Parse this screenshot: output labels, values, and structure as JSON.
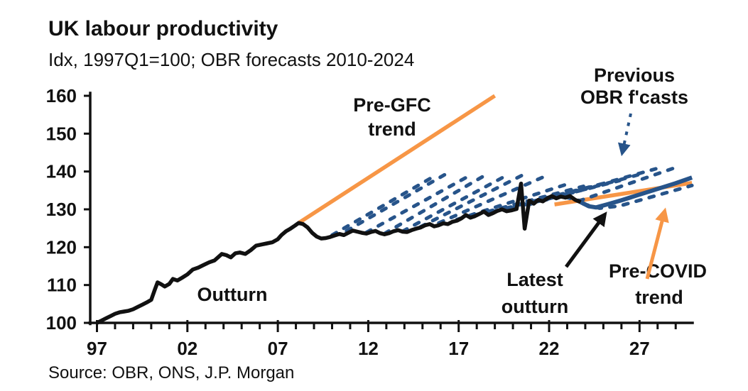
{
  "title": "UK labour productivity",
  "subtitle": "Idx, 1997Q1=100; OBR forecasts 2010-2024",
  "source": "Source: OBR, ONS, J.P. Morgan",
  "colors": {
    "ink": "#111111",
    "orange": "#F79646",
    "blue": "#27548A"
  },
  "annotations": {
    "outturn": {
      "lines": [
        "Outturn"
      ]
    },
    "pre_gfc": {
      "lines": [
        "Pre-GFC",
        "trend"
      ]
    },
    "previous_obr": {
      "lines": [
        "Previous",
        "OBR f'casts"
      ]
    },
    "latest_outturn": {
      "lines": [
        "Latest",
        "outturn"
      ]
    },
    "pre_covid": {
      "lines": [
        "Pre-COVID",
        "trend"
      ]
    }
  },
  "chart_data": {
    "type": "line",
    "title": "UK labour productivity",
    "subtitle": "Idx, 1997Q1=100; OBR forecasts 2010-2024",
    "xlabel": "",
    "ylabel": "",
    "grid": false,
    "legend_position": "annotations-in-plot",
    "x_range": [
      1997,
      2030
    ],
    "ylim": [
      100,
      160
    ],
    "y_ticks": [
      100,
      110,
      120,
      130,
      140,
      150,
      160
    ],
    "x_major_ticks": [
      1997,
      2002,
      2007,
      2012,
      2017,
      2022,
      2027
    ],
    "x_tick_labels": [
      "97",
      "02",
      "07",
      "12",
      "17",
      "22",
      "27"
    ],
    "x_minor_tick_step": 1,
    "series": [
      {
        "id": "pre_covid_trend",
        "name": "Pre-COVID trend",
        "color": "orange",
        "style": "solid",
        "width": 5.5,
        "points": [
          [
            2022.3,
            131.3
          ],
          [
            2029.9,
            137.0
          ]
        ]
      },
      {
        "id": "obr_forecasts",
        "name": "Previous OBR f'casts",
        "color": "blue",
        "style": "dashed",
        "width": 5,
        "vintages": [
          [
            [
              2010.0,
              123.2
            ],
            [
              2015.7,
              138.9
            ]
          ],
          [
            [
              2010.8,
              124.3
            ],
            [
              2016.5,
              139.9
            ]
          ],
          [
            [
              2011.9,
              123.9
            ],
            [
              2017.6,
              138.9
            ]
          ],
          [
            [
              2012.9,
              123.6
            ],
            [
              2018.6,
              139.4
            ]
          ],
          [
            [
              2013.9,
              124.2
            ],
            [
              2019.7,
              139.1
            ]
          ],
          [
            [
              2014.9,
              125.4
            ],
            [
              2020.8,
              139.7
            ]
          ],
          [
            [
              2015.9,
              126.4
            ],
            [
              2021.8,
              138.8
            ]
          ],
          [
            [
              2016.9,
              127.3
            ],
            [
              2022.9,
              136.5
            ]
          ],
          [
            [
              2017.9,
              128.5
            ],
            [
              2023.9,
              136.1
            ]
          ],
          [
            [
              2018.9,
              129.4
            ],
            [
              2021.0,
              132.0
            ],
            [
              2024.9,
              136.7
            ]
          ],
          [
            [
              2019.9,
              130.3
            ],
            [
              2025.9,
              137.6
            ]
          ],
          [
            [
              2020.9,
              131.3
            ],
            [
              2026.9,
              139.1
            ]
          ],
          [
            [
              2021.9,
              132.7
            ],
            [
              2027.9,
              140.7
            ]
          ],
          [
            [
              2022.9,
              133.2
            ],
            [
              2023.7,
              132.3
            ],
            [
              2028.9,
              140.9
            ]
          ],
          [
            [
              2023.9,
              131.4
            ],
            [
              2024.8,
              130.3
            ],
            [
              2025.9,
              130.9
            ],
            [
              2029.9,
              136.3
            ]
          ]
        ]
      },
      {
        "id": "pre_gfc_trend",
        "name": "Pre-GFC trend",
        "color": "orange",
        "style": "solid",
        "width": 5.5,
        "points": [
          [
            2008.15,
            126.4
          ],
          [
            2019.0,
            160.0
          ]
        ]
      },
      {
        "id": "outturn",
        "name": "Outturn",
        "color": "ink",
        "style": "solid",
        "width": 5.5,
        "points": [
          [
            1997.0,
            100
          ],
          [
            1997.25,
            100.6
          ],
          [
            1997.5,
            101.2
          ],
          [
            1997.75,
            101.8
          ],
          [
            1998.0,
            102.4
          ],
          [
            1998.25,
            102.8
          ],
          [
            1998.5,
            103.0
          ],
          [
            1998.75,
            103.2
          ],
          [
            1999.0,
            103.6
          ],
          [
            1999.25,
            104.2
          ],
          [
            1999.5,
            104.8
          ],
          [
            1999.75,
            105.4
          ],
          [
            2000.0,
            106.1
          ],
          [
            2000.2,
            108.8
          ],
          [
            2000.35,
            110.7
          ],
          [
            2000.55,
            110.2
          ],
          [
            2000.75,
            109.6
          ],
          [
            2001.0,
            110.3
          ],
          [
            2001.2,
            111.6
          ],
          [
            2001.45,
            111.2
          ],
          [
            2001.7,
            111.9
          ],
          [
            2002.0,
            112.8
          ],
          [
            2002.3,
            114.1
          ],
          [
            2002.6,
            114.6
          ],
          [
            2002.9,
            115.3
          ],
          [
            2003.2,
            116.0
          ],
          [
            2003.5,
            116.5
          ],
          [
            2003.9,
            118.2
          ],
          [
            2004.15,
            117.9
          ],
          [
            2004.4,
            117.3
          ],
          [
            2004.65,
            118.4
          ],
          [
            2004.9,
            118.6
          ],
          [
            2005.2,
            118.2
          ],
          [
            2005.5,
            119.2
          ],
          [
            2005.8,
            120.4
          ],
          [
            2006.1,
            120.7
          ],
          [
            2006.4,
            121.0
          ],
          [
            2006.7,
            121.3
          ],
          [
            2007.0,
            122.1
          ],
          [
            2007.2,
            123.2
          ],
          [
            2007.45,
            124.2
          ],
          [
            2007.7,
            124.9
          ],
          [
            2007.95,
            125.7
          ],
          [
            2008.15,
            126.4
          ],
          [
            2008.4,
            126.1
          ],
          [
            2008.65,
            125.2
          ],
          [
            2008.9,
            123.8
          ],
          [
            2009.15,
            122.8
          ],
          [
            2009.4,
            122.3
          ],
          [
            2009.65,
            122.4
          ],
          [
            2009.9,
            122.7
          ],
          [
            2010.15,
            123.1
          ],
          [
            2010.4,
            123.5
          ],
          [
            2010.65,
            123.2
          ],
          [
            2010.9,
            123.8
          ],
          [
            2011.15,
            124.4
          ],
          [
            2011.4,
            124.1
          ],
          [
            2011.65,
            123.8
          ],
          [
            2011.9,
            123.6
          ],
          [
            2012.15,
            124.0
          ],
          [
            2012.4,
            124.3
          ],
          [
            2012.65,
            123.7
          ],
          [
            2012.9,
            123.4
          ],
          [
            2013.15,
            123.7
          ],
          [
            2013.4,
            124.2
          ],
          [
            2013.65,
            124.5
          ],
          [
            2013.9,
            124.1
          ],
          [
            2014.15,
            124.0
          ],
          [
            2014.4,
            124.5
          ],
          [
            2014.65,
            124.9
          ],
          [
            2014.9,
            125.2
          ],
          [
            2015.15,
            125.8
          ],
          [
            2015.4,
            126.1
          ],
          [
            2015.65,
            125.5
          ],
          [
            2015.9,
            125.8
          ],
          [
            2016.15,
            126.3
          ],
          [
            2016.4,
            126.1
          ],
          [
            2016.65,
            126.7
          ],
          [
            2016.9,
            127.0
          ],
          [
            2017.15,
            127.6
          ],
          [
            2017.4,
            128.5
          ],
          [
            2017.65,
            127.8
          ],
          [
            2017.9,
            128.2
          ],
          [
            2018.15,
            128.8
          ],
          [
            2018.4,
            129.4
          ],
          [
            2018.65,
            128.5
          ],
          [
            2018.9,
            129.0
          ],
          [
            2019.15,
            129.6
          ],
          [
            2019.4,
            130.0
          ],
          [
            2019.65,
            129.5
          ],
          [
            2019.9,
            129.7
          ],
          [
            2020.2,
            130.1
          ],
          [
            2020.45,
            136.8
          ],
          [
            2020.65,
            124.9
          ],
          [
            2020.9,
            132.3
          ],
          [
            2021.15,
            131.5
          ],
          [
            2021.4,
            132.5
          ],
          [
            2021.65,
            132.1
          ],
          [
            2021.9,
            132.9
          ],
          [
            2022.15,
            133.5
          ],
          [
            2022.4,
            132.9
          ],
          [
            2022.65,
            133.4
          ],
          [
            2022.9,
            133.1
          ],
          [
            2023.15,
            133.5
          ],
          [
            2023.45,
            132.5
          ],
          [
            2023.75,
            131.9
          ]
        ]
      },
      {
        "id": "latest_forecast",
        "name": "",
        "color": "blue",
        "style": "solid",
        "width": 6,
        "points": [
          [
            2023.75,
            131.9
          ],
          [
            2024.2,
            130.8
          ],
          [
            2024.6,
            130.5
          ],
          [
            2025.2,
            131.3
          ],
          [
            2026.0,
            132.4
          ],
          [
            2027.0,
            133.9
          ],
          [
            2028.0,
            135.4
          ],
          [
            2029.0,
            136.9
          ],
          [
            2029.9,
            138.4
          ]
        ]
      }
    ]
  }
}
